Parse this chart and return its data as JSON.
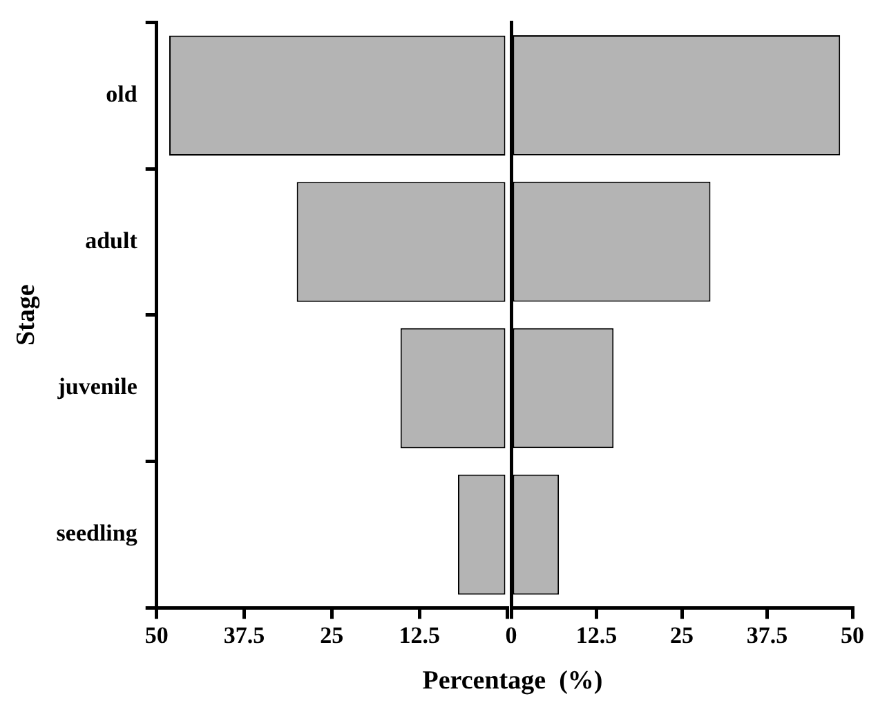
{
  "chart_data": [
    {
      "type": "bar",
      "orientation": "horizontal",
      "xlabel": "Percentage  (%)",
      "ylabel": "Stage",
      "categories": [
        "old",
        "adult",
        "juvenile",
        "seedling"
      ],
      "series": [
        {
          "color": "#b4b4b4",
          "values": [
            48.2,
            30,
            15.2,
            7
          ]
        }
      ],
      "xlim": [
        50,
        0
      ],
      "xticks": [
        50,
        37.5,
        25,
        12.5,
        {
          "value": 0,
          "label": null
        }
      ],
      "grid": false,
      "legend": false
    },
    {
      "type": "bar",
      "orientation": "horizontal",
      "categories": [
        null,
        null,
        null,
        null
      ],
      "series": [
        {
          "color": "#b4b4b4",
          "values": [
            48.2,
            29.2,
            15,
            7
          ]
        }
      ],
      "xlim": [
        0,
        50
      ],
      "xticks": [
        0,
        12.5,
        25,
        37.5,
        50
      ],
      "tick_labels": "x",
      "grid": false,
      "legend": false
    }
  ]
}
